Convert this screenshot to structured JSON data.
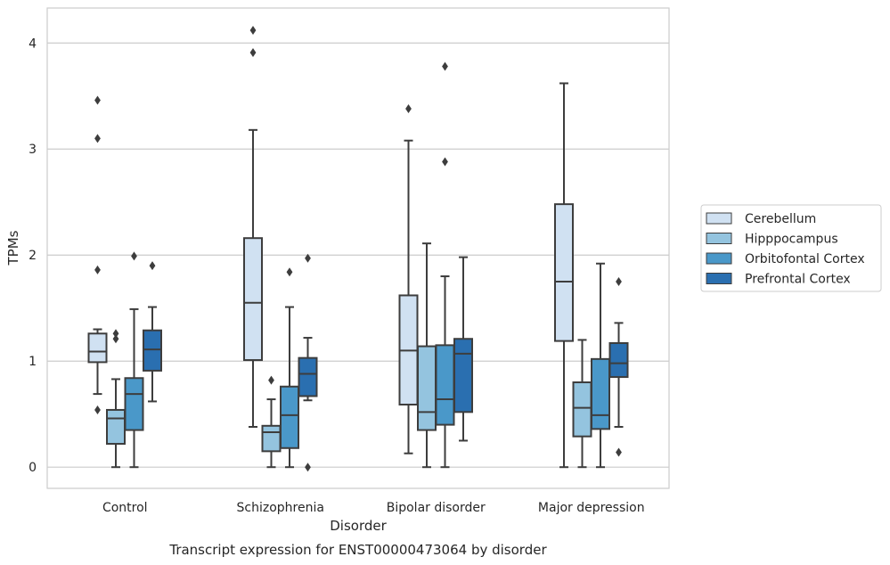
{
  "chart_data": {
    "type": "box",
    "title": "Transcript expression for ENST00000473064 by disorder",
    "xlabel": "Disorder",
    "ylabel": "TPMs",
    "ylim": [
      -0.2,
      4.33
    ],
    "yticks": [
      0,
      1,
      2,
      3,
      4
    ],
    "grid": "horizontal",
    "legend_position": "right",
    "categories": [
      "Control",
      "Schizophrenia",
      "Bipolar disorder",
      "Major depression"
    ],
    "series": [
      {
        "name": "Cerebellum",
        "color": "#d0e1f2",
        "boxes": [
          {
            "q1": 0.99,
            "median": 1.09,
            "q3": 1.26,
            "whisker_low": 0.69,
            "whisker_high": 1.3,
            "outliers": [
              3.46,
              3.1,
              1.86,
              0.54
            ]
          },
          {
            "q1": 1.01,
            "median": 1.55,
            "q3": 2.16,
            "whisker_low": 0.38,
            "whisker_high": 3.18,
            "outliers": [
              4.12,
              3.91
            ]
          },
          {
            "q1": 0.59,
            "median": 1.1,
            "q3": 1.62,
            "whisker_low": 0.13,
            "whisker_high": 3.08,
            "outliers": [
              3.38
            ]
          },
          {
            "q1": 1.19,
            "median": 1.75,
            "q3": 2.48,
            "whisker_low": 0.0,
            "whisker_high": 3.62,
            "outliers": []
          }
        ]
      },
      {
        "name": "Hipppocampus",
        "color": "#94c4df",
        "boxes": [
          {
            "q1": 0.22,
            "median": 0.46,
            "q3": 0.54,
            "whisker_low": 0.0,
            "whisker_high": 0.83,
            "outliers": [
              1.26,
              1.21
            ]
          },
          {
            "q1": 0.15,
            "median": 0.33,
            "q3": 0.39,
            "whisker_low": 0.0,
            "whisker_high": 0.64,
            "outliers": [
              0.82
            ]
          },
          {
            "q1": 0.35,
            "median": 0.52,
            "q3": 1.14,
            "whisker_low": 0.0,
            "whisker_high": 2.11,
            "outliers": []
          },
          {
            "q1": 0.29,
            "median": 0.56,
            "q3": 0.8,
            "whisker_low": 0.0,
            "whisker_high": 1.2,
            "outliers": []
          }
        ]
      },
      {
        "name": "Orbitofontal Cortex",
        "color": "#4a98c9",
        "boxes": [
          {
            "q1": 0.35,
            "median": 0.69,
            "q3": 0.84,
            "whisker_low": 0.0,
            "whisker_high": 1.49,
            "outliers": [
              1.99
            ]
          },
          {
            "q1": 0.18,
            "median": 0.49,
            "q3": 0.76,
            "whisker_low": 0.0,
            "whisker_high": 1.51,
            "outliers": [
              1.84
            ]
          },
          {
            "q1": 0.4,
            "median": 0.64,
            "q3": 1.15,
            "whisker_low": 0.0,
            "whisker_high": 1.8,
            "outliers": [
              3.78,
              2.88
            ]
          },
          {
            "q1": 0.36,
            "median": 0.49,
            "q3": 1.02,
            "whisker_low": 0.0,
            "whisker_high": 1.92,
            "outliers": []
          }
        ]
      },
      {
        "name": "Prefrontal Cortex",
        "color": "#2a6fb0",
        "boxes": [
          {
            "q1": 0.91,
            "median": 1.11,
            "q3": 1.29,
            "whisker_low": 0.62,
            "whisker_high": 1.51,
            "outliers": [
              1.9
            ]
          },
          {
            "q1": 0.67,
            "median": 0.88,
            "q3": 1.03,
            "whisker_low": 0.63,
            "whisker_high": 1.22,
            "outliers": [
              1.97,
              0.0
            ]
          },
          {
            "q1": 0.52,
            "median": 1.07,
            "q3": 1.21,
            "whisker_low": 0.25,
            "whisker_high": 1.98,
            "outliers": []
          },
          {
            "q1": 0.85,
            "median": 0.98,
            "q3": 1.17,
            "whisker_low": 0.38,
            "whisker_high": 1.36,
            "outliers": [
              1.75,
              0.14
            ]
          }
        ]
      }
    ]
  }
}
